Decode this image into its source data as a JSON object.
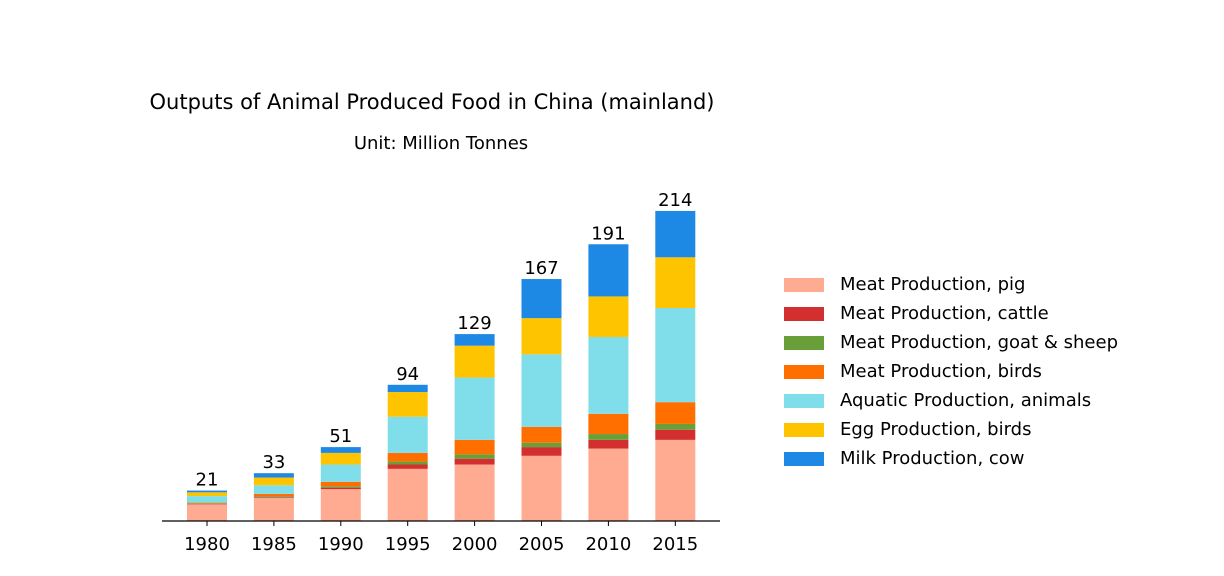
{
  "chart_data": {
    "type": "stacked_bar",
    "title": "Outputs of Animal Produced Food in China (mainland)",
    "subtitle": "Unit: Million Tonnes",
    "categories": [
      "1980",
      "1985",
      "1990",
      "1995",
      "2000",
      "2005",
      "2010",
      "2015"
    ],
    "series": [
      {
        "name": "Meat Production, pig",
        "color": "#ffab91",
        "values": [
          11.5,
          16,
          22,
          36,
          39,
          45,
          50,
          56
        ]
      },
      {
        "name": "Meat Production, cattle",
        "color": "#d32f2f",
        "values": [
          0.3,
          0.5,
          1,
          3,
          4,
          6,
          6,
          7
        ]
      },
      {
        "name": "Meat Production, goat & sheep",
        "color": "#689f38",
        "values": [
          0.4,
          0.6,
          1,
          2,
          3,
          3,
          4,
          4
        ]
      },
      {
        "name": "Meat Production, birds",
        "color": "#ff6f00",
        "values": [
          0.5,
          1.6,
          3,
          6,
          10,
          11,
          14,
          15
        ]
      },
      {
        "name": "Aquatic Production, animals",
        "color": "#80deea",
        "values": [
          4.5,
          6,
          12,
          25,
          43,
          50,
          53,
          65
        ]
      },
      {
        "name": "Egg Production, birds",
        "color": "#ffc400",
        "values": [
          2.6,
          5.3,
          8,
          17,
          22,
          25,
          28,
          35
        ]
      },
      {
        "name": "Milk Production, cow",
        "color": "#1e88e5",
        "values": [
          1.2,
          3,
          4,
          5,
          8,
          27,
          36,
          32
        ]
      }
    ],
    "totals": [
      21,
      33,
      51,
      94,
      129,
      167,
      191,
      214
    ],
    "ylim": [
      0,
      225
    ]
  }
}
